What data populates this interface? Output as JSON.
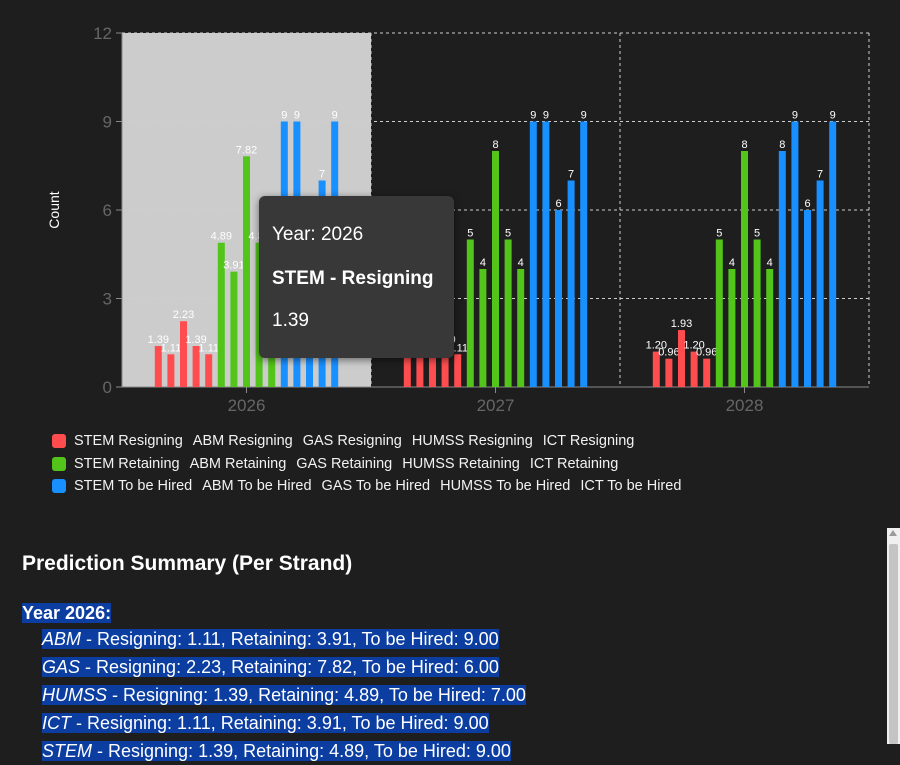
{
  "chart_data": {
    "type": "bar",
    "ylabel": "Count",
    "ylim": [
      0,
      12
    ],
    "yticks": [
      "0",
      "3",
      "6",
      "9",
      "12"
    ],
    "categories": [
      "2026",
      "2027",
      "2028"
    ],
    "highlighted_category": "2026",
    "grid": true,
    "legend_position": "bottom",
    "series": [
      {
        "name": "STEM Resigning",
        "group": "Resigning",
        "values": [
          1.39,
          1.39,
          1.2
        ],
        "labels": [
          "1.39",
          "1.39",
          "1.20"
        ]
      },
      {
        "name": "ABM Resigning",
        "group": "Resigning",
        "values": [
          1.11,
          1.11,
          0.96
        ],
        "labels": [
          "1.11",
          "1.11",
          "0.96"
        ]
      },
      {
        "name": "GAS Resigning",
        "group": "Resigning",
        "values": [
          2.23,
          2.23,
          1.93
        ],
        "labels": [
          "2.23",
          "2.23",
          "1.93"
        ]
      },
      {
        "name": "HUMSS Resigning",
        "group": "Resigning",
        "values": [
          1.39,
          1.39,
          1.2
        ],
        "labels": [
          "1.39",
          "1.39",
          "1.20"
        ]
      },
      {
        "name": "ICT Resigning",
        "group": "Resigning",
        "values": [
          1.11,
          1.11,
          0.96
        ],
        "labels": [
          "1.11",
          "1.11",
          "0.96"
        ]
      },
      {
        "name": "STEM Retaining",
        "group": "Retaining",
        "values": [
          4.89,
          5,
          5
        ],
        "labels": [
          "4.89",
          "5",
          "5"
        ]
      },
      {
        "name": "ABM Retaining",
        "group": "Retaining",
        "values": [
          3.91,
          4,
          4
        ],
        "labels": [
          "3.91",
          "4",
          "4"
        ]
      },
      {
        "name": "GAS Retaining",
        "group": "Retaining",
        "values": [
          7.82,
          8,
          8
        ],
        "labels": [
          "7.82",
          "8",
          "8"
        ]
      },
      {
        "name": "HUMSS Retaining",
        "group": "Retaining",
        "values": [
          4.89,
          5,
          5
        ],
        "labels": [
          "4.89",
          "5",
          "5"
        ]
      },
      {
        "name": "ICT Retaining",
        "group": "Retaining",
        "values": [
          3.91,
          4,
          4
        ],
        "labels": [
          "3.91",
          "4",
          "4"
        ]
      },
      {
        "name": "STEM To be Hired",
        "group": "To be Hired",
        "values": [
          9,
          9,
          8
        ],
        "labels": [
          "9",
          "9",
          "8"
        ]
      },
      {
        "name": "ABM To be Hired",
        "group": "To be Hired",
        "values": [
          9,
          9,
          9
        ],
        "labels": [
          "9",
          "9",
          "9"
        ]
      },
      {
        "name": "GAS To be Hired",
        "group": "To be Hired",
        "values": [
          6,
          6,
          6
        ],
        "labels": [
          "6",
          "6",
          "6"
        ]
      },
      {
        "name": "HUMSS To be Hired",
        "group": "To be Hired",
        "values": [
          7,
          7,
          7
        ],
        "labels": [
          "7",
          "7",
          "7"
        ]
      },
      {
        "name": "ICT To be Hired",
        "group": "To be Hired",
        "values": [
          9,
          9,
          9
        ],
        "labels": [
          "9",
          "9",
          "9"
        ]
      }
    ],
    "colors": {
      "Resigning": "#ff4d4f",
      "Retaining": "#52c41a",
      "To be Hired": "#1890ff"
    },
    "legend": [
      {
        "color": "#ff4d4f",
        "entries": [
          "STEM Resigning",
          "ABM Resigning",
          "GAS Resigning",
          "HUMSS Resigning",
          "ICT Resigning"
        ]
      },
      {
        "color": "#52c41a",
        "entries": [
          "STEM Retaining",
          "ABM Retaining",
          "GAS Retaining",
          "HUMSS Retaining",
          "ICT Retaining"
        ]
      },
      {
        "color": "#1890ff",
        "entries": [
          "STEM To be Hired",
          "ABM To be Hired",
          "GAS To be Hired",
          "HUMSS To be Hired",
          "ICT To be Hired"
        ]
      }
    ]
  },
  "tooltip": {
    "year": "Year: 2026",
    "series": "STEM - Resigning",
    "value": "1.39"
  },
  "summary": {
    "title": "Prediction Summary (Per Strand)",
    "year_label": "Year 2026:",
    "rows": [
      {
        "name": "ABM",
        "text": " - Resigning: 1.11, Retaining: 3.91, To be Hired: 9.00"
      },
      {
        "name": "GAS",
        "text": " - Resigning: 2.23, Retaining: 7.82, To be Hired: 6.00"
      },
      {
        "name": "HUMSS",
        "text": " - Resigning: 1.39, Retaining: 4.89, To be Hired: 7.00"
      },
      {
        "name": "ICT",
        "text": " - Resigning: 1.11, Retaining: 3.91, To be Hired: 9.00"
      },
      {
        "name": "STEM",
        "text": " - Resigning: 1.39, Retaining: 4.89, To be Hired: 9.00"
      }
    ]
  }
}
